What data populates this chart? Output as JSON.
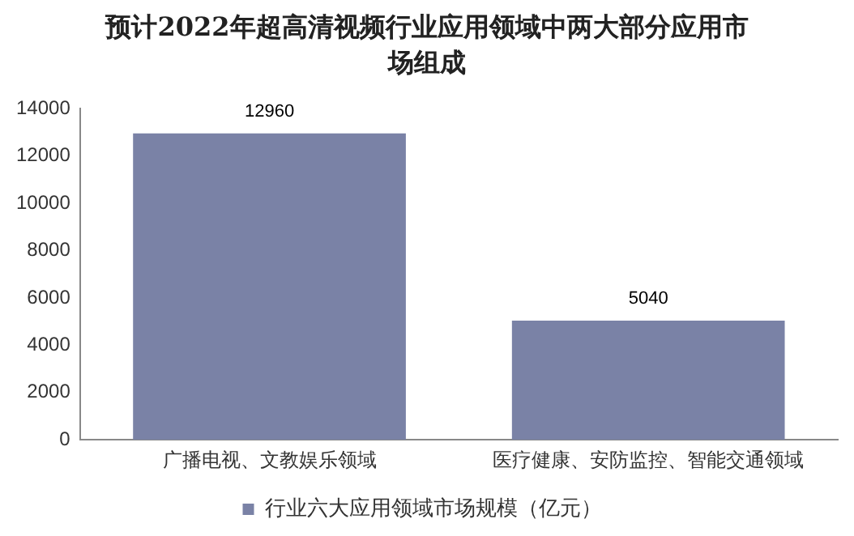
{
  "chart_data": {
    "type": "bar",
    "title": "预计2022年超高清视频行业应用领域中两大部分应用市场组成",
    "categories": [
      "广播电视、文教娱乐领域",
      "医疗健康、安防监控、智能交通领域"
    ],
    "series": [
      {
        "name": "行业六大应用领域市场规模（亿元）",
        "color": "#7a82a6",
        "values": [
          12960,
          5040
        ]
      }
    ],
    "ylim": [
      0,
      14000
    ],
    "yticks": [
      0,
      2000,
      4000,
      6000,
      8000,
      10000,
      12000,
      14000
    ],
    "data_labels": true,
    "legend": "bottom",
    "grid": false
  }
}
